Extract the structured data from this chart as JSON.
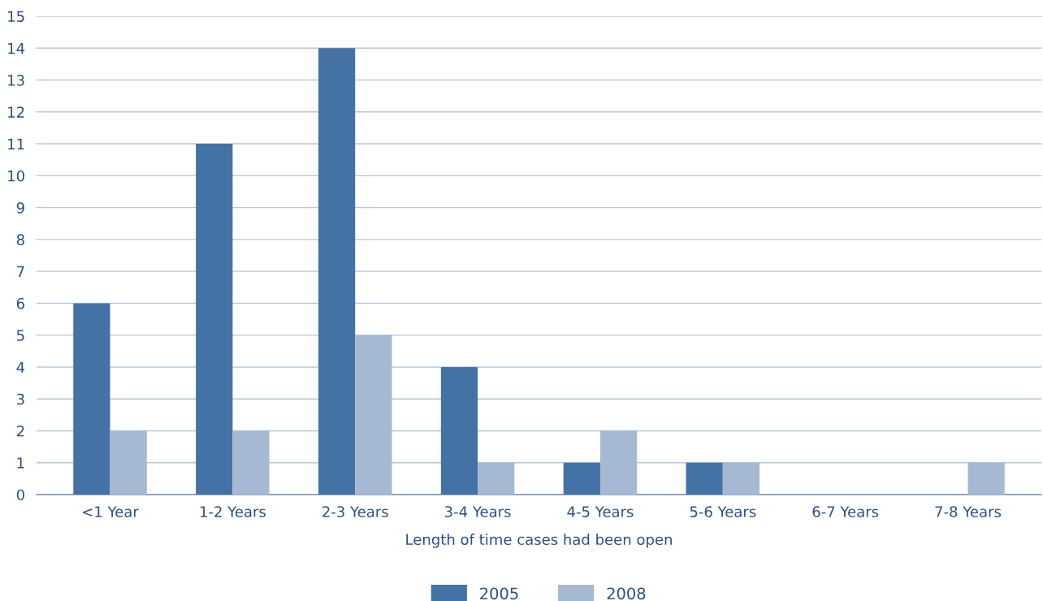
{
  "chart_data": {
    "type": "bar",
    "xlabel": "Length of time cases had been open",
    "categories": [
      "<1 Year",
      "1-2 Years",
      "2-3 Years",
      "3-4 Years",
      "4-5 Years",
      "5-6 Years",
      "6-7 Years",
      "7-8 Years"
    ],
    "series": [
      {
        "name": "2005",
        "color": "#4572a5",
        "values": [
          6,
          11,
          14,
          4,
          1,
          1,
          0,
          0
        ]
      },
      {
        "name": "2008",
        "color": "#a5b9d2",
        "values": [
          2,
          2,
          5,
          1,
          2,
          1,
          0,
          1
        ]
      }
    ],
    "ylim": [
      0,
      15
    ],
    "yticks": [
      0,
      1,
      2,
      3,
      4,
      5,
      6,
      7,
      8,
      9,
      10,
      11,
      12,
      13,
      14,
      15
    ],
    "grid": "y",
    "legend": "bottom"
  }
}
